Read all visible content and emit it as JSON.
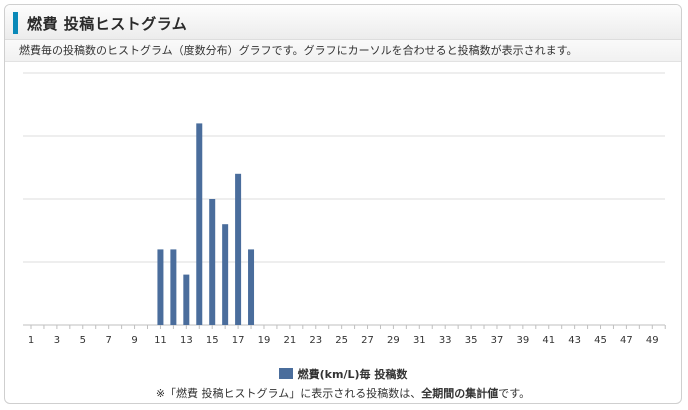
{
  "header": {
    "title": "燃費 投稿ヒストグラム",
    "description": "燃費毎の投稿数のヒストグラム（度数分布）グラフです。グラフにカーソルを合わせると投稿数が表示されます。"
  },
  "legend": {
    "label": "燃費(km/L)毎 投稿数"
  },
  "note": {
    "prefix": "※「燃費 投稿ヒストグラム」に表示される投稿数は、",
    "bold": "全期間の集計値",
    "suffix": "です。"
  },
  "colors": {
    "bar": "#4a6d9c",
    "grid": "#dcdcdc",
    "accent": "#0a89b8"
  },
  "chart_data": {
    "type": "bar",
    "x": [
      1,
      2,
      3,
      4,
      5,
      6,
      7,
      8,
      9,
      10,
      11,
      12,
      13,
      14,
      15,
      16,
      17,
      18,
      19,
      20,
      21,
      22,
      23,
      24,
      25,
      26,
      27,
      28,
      29,
      30,
      31,
      32,
      33,
      34,
      35,
      36,
      37,
      38,
      39,
      40,
      41,
      42,
      43,
      44,
      45,
      46,
      47,
      48,
      49,
      50
    ],
    "xticks": [
      "1",
      "3",
      "5",
      "7",
      "9",
      "11",
      "13",
      "15",
      "17",
      "19",
      "21",
      "23",
      "25",
      "27",
      "29",
      "31",
      "33",
      "35",
      "37",
      "39",
      "41",
      "43",
      "45",
      "47",
      "49"
    ],
    "series": [
      {
        "name": "燃費(km/L)毎 投稿数",
        "values": [
          0,
          0,
          0,
          0,
          0,
          0,
          0,
          0,
          0,
          0,
          3,
          3,
          2,
          8,
          5,
          4,
          6,
          3,
          0,
          0,
          0,
          0,
          0,
          0,
          0,
          0,
          0,
          0,
          0,
          0,
          0,
          0,
          0,
          0,
          0,
          0,
          0,
          0,
          0,
          0,
          0,
          0,
          0,
          0,
          0,
          0,
          0,
          0,
          0,
          0
        ]
      }
    ],
    "ylim": [
      0,
      10
    ],
    "y_gridlines": 4,
    "grid": true,
    "legend_position": "bottom"
  }
}
